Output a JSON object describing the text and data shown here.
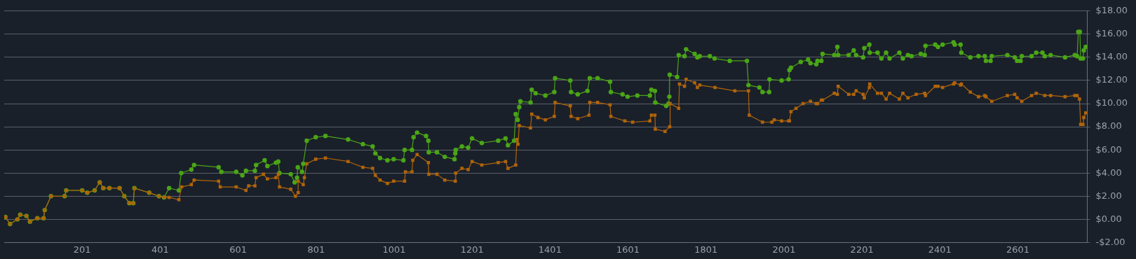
{
  "chart_data": {
    "type": "line",
    "xlim": [
      1,
      2779
    ],
    "xticks": [
      201,
      401,
      601,
      801,
      1001,
      1201,
      1401,
      1601,
      1801,
      2001,
      2201,
      2401,
      2601
    ],
    "ylim": [
      -2,
      18
    ],
    "yticks": [
      {
        "value": -2,
        "label": "-$2.00"
      },
      {
        "value": 0,
        "label": "$0.00"
      },
      {
        "value": 2,
        "label": "$2.00"
      },
      {
        "value": 4,
        "label": "$4.00"
      },
      {
        "value": 6,
        "label": "$6.00"
      },
      {
        "value": 8,
        "label": "$8.00"
      },
      {
        "value": 10,
        "label": "$10.00"
      },
      {
        "value": 12,
        "label": "$12.00"
      },
      {
        "value": 14,
        "label": "$14.00"
      },
      {
        "value": 16,
        "label": "$16.00"
      },
      {
        "value": 18,
        "label": "$18.00"
      }
    ],
    "grid": "y",
    "legend": false,
    "line_style": "solid",
    "series": [
      {
        "color": "#b0640a",
        "marker": "square",
        "x": [
          4,
          16,
          35,
          42,
          58,
          67,
          86,
          102,
          105,
          121,
          156,
          160,
          201,
          214,
          233,
          246,
          255,
          271,
          297,
          309,
          322,
          332,
          335,
          373,
          398,
          411,
          424,
          449,
          456,
          481,
          488,
          551,
          555,
          596,
          621,
          628,
          644,
          647,
          666,
          676,
          698,
          704,
          707,
          736,
          748,
          755,
          755,
          768,
          771,
          777,
          800,
          825,
          883,
          921,
          946,
          953,
          965,
          984,
          1000,
          1028,
          1030,
          1047,
          1049,
          1060,
          1089,
          1090,
          1111,
          1131,
          1158,
          1159,
          1175,
          1191,
          1201,
          1226,
          1268,
          1287,
          1293,
          1313,
          1316,
          1319,
          1322,
          1351,
          1354,
          1370,
          1389,
          1412,
          1414,
          1453,
          1455,
          1472,
          1501,
          1503,
          1523,
          1555,
          1557,
          1593,
          1613,
          1657,
          1661,
          1670,
          1671,
          1696,
          1708,
          1709,
          1731,
          1733,
          1746,
          1750,
          1772,
          1779,
          1785,
          1824,
          1875,
          1910,
          1912,
          1946,
          1970,
          1976,
          1995,
          2013,
          2015,
          2019,
          2032,
          2050,
          2069,
          2084,
          2087,
          2097,
          2100,
          2130,
          2138,
          2140,
          2167,
          2180,
          2186,
          2204,
          2207,
          2220,
          2221,
          2241,
          2251,
          2263,
          2272,
          2297,
          2306,
          2319,
          2340,
          2362,
          2364,
          2389,
          2396,
          2408,
          2436,
          2439,
          2454,
          2456,
          2479,
          2500,
          2516,
          2519,
          2534,
          2574,
          2593,
          2599,
          2611,
          2636,
          2648,
          2670,
          2685,
          2722,
          2747,
          2753,
          2759,
          2762,
          2768,
          2770,
          2775
        ],
        "values": [
          0.2,
          -0.4,
          0.0,
          0.4,
          0.3,
          -0.2,
          0.1,
          0.1,
          0.8,
          2.0,
          2.0,
          2.5,
          2.5,
          2.3,
          2.5,
          3.2,
          2.7,
          2.7,
          2.7,
          2.0,
          1.4,
          1.4,
          2.7,
          2.3,
          2.0,
          1.9,
          1.9,
          1.7,
          2.8,
          3.0,
          3.4,
          3.3,
          2.8,
          2.8,
          2.5,
          2.9,
          2.9,
          3.6,
          3.9,
          3.5,
          3.6,
          3.9,
          2.8,
          2.6,
          2.0,
          2.3,
          3.3,
          3.0,
          3.6,
          4.8,
          5.2,
          5.3,
          5.0,
          4.5,
          4.4,
          3.8,
          3.4,
          3.1,
          3.3,
          3.3,
          4.1,
          4.1,
          5.1,
          5.6,
          4.9,
          3.9,
          3.9,
          3.4,
          3.3,
          4.0,
          4.4,
          4.3,
          5.0,
          4.7,
          4.9,
          5.0,
          4.4,
          4.7,
          6.9,
          6.5,
          8.1,
          7.9,
          9.1,
          8.8,
          8.6,
          8.9,
          10.1,
          9.8,
          8.9,
          8.7,
          9.0,
          10.1,
          10.1,
          9.9,
          8.9,
          8.5,
          8.4,
          8.5,
          9.0,
          9.0,
          7.8,
          7.6,
          8.0,
          10.0,
          9.6,
          11.7,
          11.5,
          12.1,
          11.8,
          11.4,
          11.6,
          11.4,
          11.1,
          11.1,
          9.0,
          8.4,
          8.4,
          8.6,
          8.5,
          8.5,
          8.5,
          9.3,
          9.6,
          10.0,
          10.2,
          10.0,
          10.0,
          10.3,
          10.3,
          10.9,
          10.8,
          11.5,
          10.8,
          10.8,
          11.1,
          10.8,
          10.5,
          11.4,
          11.7,
          10.9,
          10.9,
          10.4,
          10.9,
          10.4,
          10.9,
          10.5,
          10.8,
          10.9,
          10.7,
          11.5,
          11.5,
          11.4,
          11.7,
          11.8,
          11.6,
          11.7,
          11.0,
          10.6,
          10.7,
          10.6,
          10.2,
          10.7,
          10.8,
          10.5,
          10.2,
          10.7,
          10.9,
          10.7,
          10.7,
          10.6,
          10.7,
          10.7,
          10.4,
          8.2,
          8.2,
          8.8,
          9.2
        ]
      },
      {
        "color": "#4aa516",
        "marker": "circle",
        "x": [
          4,
          16,
          35,
          42,
          58,
          67,
          86,
          102,
          105,
          121,
          156,
          160,
          201,
          214,
          233,
          246,
          255,
          271,
          297,
          309,
          322,
          332,
          335,
          373,
          398,
          411,
          424,
          449,
          455,
          481,
          488,
          551,
          558,
          596,
          612,
          621,
          644,
          647,
          669,
          676,
          698,
          704,
          707,
          736,
          746,
          752,
          754,
          765,
          768,
          777,
          800,
          825,
          883,
          921,
          946,
          953,
          965,
          984,
          1000,
          1025,
          1028,
          1047,
          1051,
          1060,
          1083,
          1089,
          1090,
          1111,
          1131,
          1156,
          1158,
          1159,
          1175,
          1191,
          1201,
          1226,
          1268,
          1287,
          1293,
          1309,
          1313,
          1318,
          1322,
          1325,
          1351,
          1354,
          1364,
          1389,
          1412,
          1414,
          1453,
          1455,
          1472,
          1497,
          1503,
          1523,
          1555,
          1557,
          1587,
          1600,
          1625,
          1657,
          1661,
          1670,
          1671,
          1699,
          1705,
          1707,
          1708,
          1727,
          1731,
          1746,
          1750,
          1772,
          1779,
          1785,
          1811,
          1823,
          1862,
          1906,
          1910,
          1938,
          1946,
          1963,
          1964,
          1995,
          2013,
          2015,
          2019,
          2044,
          2063,
          2069,
          2084,
          2087,
          2097,
          2100,
          2130,
          2138,
          2140,
          2167,
          2180,
          2186,
          2204,
          2207,
          2220,
          2221,
          2241,
          2251,
          2263,
          2272,
          2297,
          2306,
          2319,
          2328,
          2352,
          2362,
          2364,
          2389,
          2396,
          2408,
          2436,
          2439,
          2454,
          2456,
          2479,
          2500,
          2516,
          2519,
          2531,
          2534,
          2574,
          2593,
          2599,
          2608,
          2611,
          2636,
          2648,
          2664,
          2670,
          2685,
          2722,
          2747,
          2753,
          2756,
          2760,
          2762,
          2768,
          2770,
          2775
        ],
        "values": [
          0.2,
          -0.4,
          0.0,
          0.4,
          0.3,
          -0.2,
          0.1,
          0.1,
          0.8,
          2.0,
          2.0,
          2.5,
          2.5,
          2.3,
          2.5,
          3.2,
          2.7,
          2.7,
          2.7,
          2.0,
          1.4,
          1.4,
          2.7,
          2.3,
          2.0,
          1.9,
          2.7,
          2.5,
          4.0,
          4.3,
          4.7,
          4.5,
          4.1,
          4.1,
          3.8,
          4.2,
          4.2,
          4.7,
          5.1,
          4.6,
          4.9,
          5.0,
          4.0,
          3.9,
          3.2,
          3.6,
          4.5,
          4.1,
          4.8,
          6.8,
          7.1,
          7.2,
          6.9,
          6.5,
          6.3,
          5.7,
          5.3,
          5.1,
          5.2,
          5.1,
          6.0,
          6.0,
          7.1,
          7.5,
          7.2,
          6.8,
          5.8,
          5.8,
          5.4,
          5.2,
          5.7,
          6.0,
          6.3,
          6.2,
          7.0,
          6.6,
          6.8,
          7.0,
          6.4,
          6.8,
          9.1,
          8.6,
          9.7,
          10.2,
          10.1,
          11.2,
          10.9,
          10.7,
          11.0,
          12.2,
          12.0,
          11.0,
          10.8,
          11.1,
          12.2,
          12.2,
          11.9,
          11.0,
          10.8,
          10.6,
          10.7,
          10.7,
          11.2,
          11.1,
          10.1,
          9.8,
          10.0,
          10.6,
          12.5,
          12.3,
          14.2,
          14.1,
          14.7,
          14.3,
          14.0,
          14.1,
          14.1,
          13.9,
          13.7,
          13.7,
          11.6,
          11.4,
          11.0,
          11.0,
          12.1,
          12.0,
          12.1,
          12.9,
          13.1,
          13.6,
          13.8,
          13.5,
          13.4,
          13.7,
          13.7,
          14.3,
          14.2,
          14.9,
          14.2,
          14.2,
          14.6,
          14.2,
          14.0,
          14.8,
          15.1,
          14.4,
          14.4,
          13.9,
          14.4,
          13.9,
          14.4,
          13.9,
          14.2,
          14.1,
          14.3,
          14.2,
          15.0,
          15.1,
          14.9,
          15.1,
          15.3,
          15.1,
          15.1,
          14.4,
          14.0,
          14.1,
          14.1,
          13.7,
          13.7,
          14.1,
          14.2,
          14.0,
          13.7,
          13.7,
          14.1,
          14.1,
          14.4,
          14.4,
          14.1,
          14.2,
          14.0,
          14.2,
          14.1,
          16.2,
          16.2,
          13.9,
          13.9,
          14.6,
          14.9
        ]
      }
    ]
  }
}
